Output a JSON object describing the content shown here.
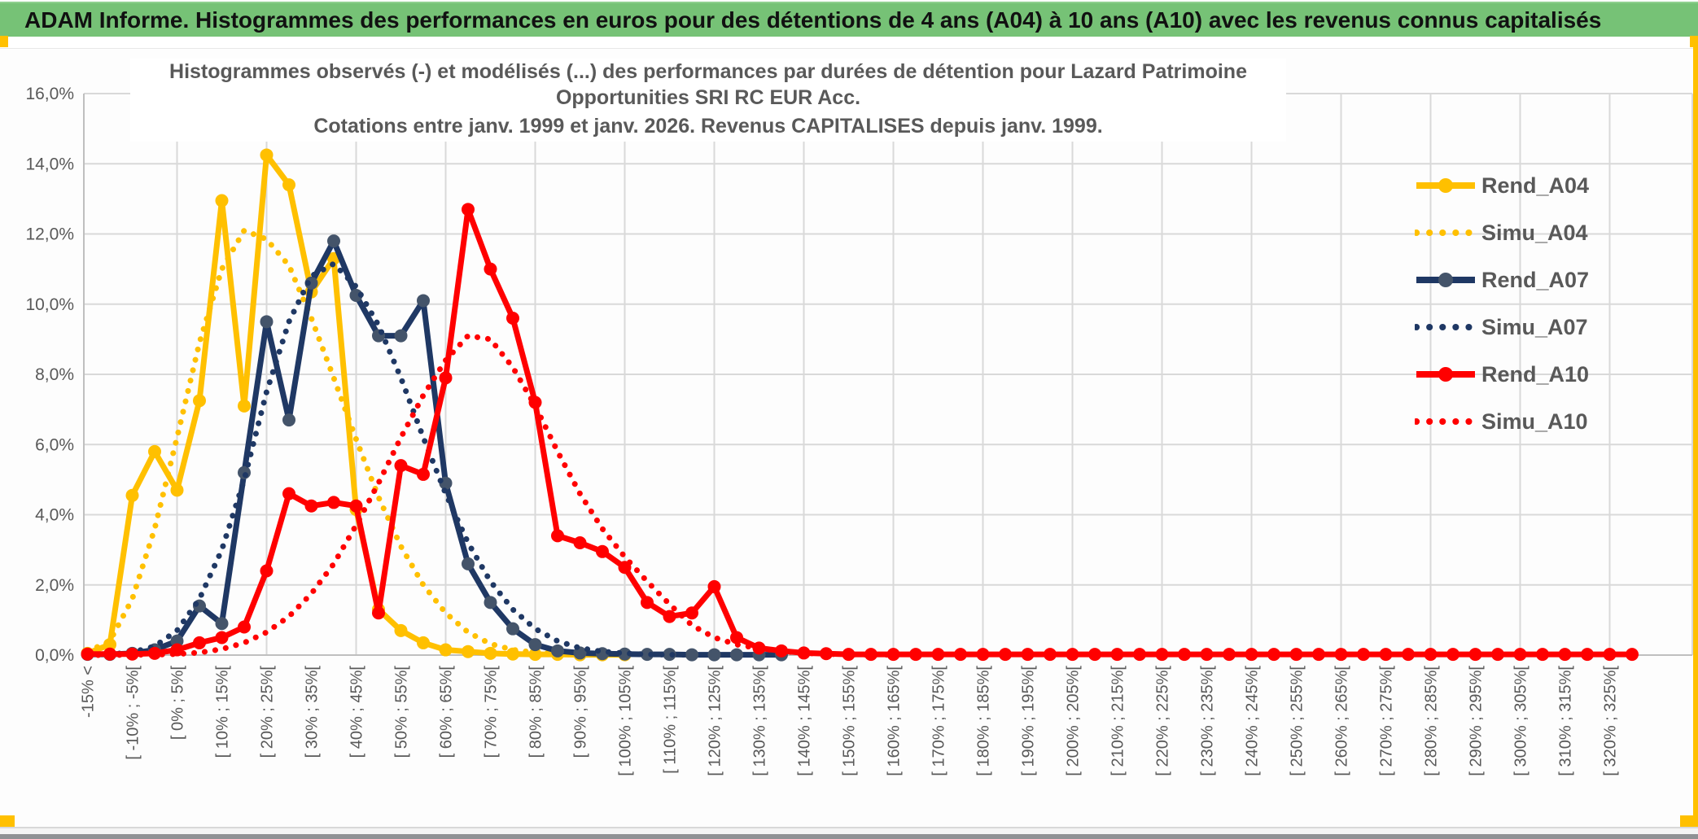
{
  "window": {
    "banner_title": "ADAM Informe. Histogrammes des performances en euros pour des détentions de 4 ans (A04) à 10 ans (A10) avec les revenus connus capitalisés",
    "banner_color": "#76C276",
    "accent_gold": "#FFC000",
    "bottom_bar_color": "#8F9194"
  },
  "chart_data": {
    "type": "line",
    "title_line1": "Histogrammes observés (-) et modélisés (...) des performances par durées de détention pour Lazard Patrimoine Opportunities SRI RC EUR Acc.",
    "title_line2": "Cotations entre janv. 1999 et janv. 2026. Revenus CAPITALISES depuis janv. 1999.",
    "grid": true,
    "legend_position": "right-inside",
    "ylim": [
      0,
      16
    ],
    "ytick_step_pct": 2,
    "y_tick_labels": [
      "0,0%",
      "2,0%",
      "4,0%",
      "6,0%",
      "8,0%",
      "10,0%",
      "12,0%",
      "14,0%",
      "16,0%"
    ],
    "n_bins": 70,
    "bin_width_pct": 5,
    "x_label_rotation": -90,
    "x_labels_every_other_bin": true,
    "x_tick_labels": [
      "-15% <",
      "[ -10% ; -5%[",
      "[ 0% ; 5%[",
      "[ 10% ; 15%[",
      "[ 20% ; 25%[",
      "[ 30% ; 35%[",
      "[ 40% ; 45%[",
      "[ 50% ; 55%[",
      "[ 60% ; 65%[",
      "[ 70% ; 75%[",
      "[ 80% ; 85%[",
      "[ 90% ; 95%[",
      "[ 100% ; 105%[",
      "[ 110% ; 115%[",
      "[ 120% ; 125%[",
      "[ 130% ; 135%[",
      "[ 140% ; 145%[",
      "[ 150% ; 155%[",
      "[ 160% ; 165%[",
      "[ 170% ; 175%[",
      "[ 180% ; 185%[",
      "[ 190% ; 195%[",
      "[ 200% ; 205%[",
      "[ 210% ; 215%[",
      "[ 220% ; 225%[",
      "[ 230% ; 235%[",
      "[ 240% ; 245%[",
      "[ 250% ; 255%[",
      "[ 260% ; 265%[",
      "[ 270% ; 275%[",
      "[ 280% ; 285%[",
      "[ 290% ; 295%[",
      "[ 300% ; 305%[",
      "[ 310% ; 315%[",
      "[ 320% ; 325%["
    ],
    "gridline_color": "#D9D9D9",
    "axis_line_color": "#BFBFBF",
    "axis_text_color": "#595959",
    "series": [
      {
        "name": "Rend_A04",
        "style": "solid",
        "color": "#FFC000",
        "marker": "#FFC000",
        "values": [
          0.05,
          0.3,
          4.55,
          5.8,
          4.7,
          7.25,
          12.95,
          7.1,
          14.25,
          13.4,
          10.35,
          11.3,
          4.15,
          1.3,
          0.7,
          0.35,
          0.15,
          0.1,
          0.05,
          0.03,
          0.02,
          0.02,
          0.01,
          0.01,
          0.01
        ]
      },
      {
        "name": "Simu_A04",
        "style": "dotted",
        "color": "#FFC000",
        "values": [
          0.1,
          0.4,
          1.6,
          3.6,
          6.2,
          8.9,
          11.0,
          12.1,
          11.85,
          11.1,
          9.6,
          7.9,
          6.15,
          4.5,
          3.1,
          2.0,
          1.2,
          0.65,
          0.32,
          0.15,
          0.07,
          0.03,
          0.01,
          0.01
        ]
      },
      {
        "name": "Rend_A07",
        "style": "solid",
        "color": "#1F3864",
        "marker": "#44546A",
        "values": [
          0.02,
          0.02,
          0.05,
          0.15,
          0.4,
          1.4,
          0.9,
          5.2,
          9.5,
          6.7,
          10.6,
          11.8,
          10.25,
          9.1,
          9.1,
          10.1,
          4.9,
          2.6,
          1.5,
          0.75,
          0.3,
          0.12,
          0.06,
          0.04,
          0.03,
          0.02,
          0.02,
          0.01,
          0.01,
          0.01,
          0.01,
          0.01
        ]
      },
      {
        "name": "Simu_A07",
        "style": "dotted",
        "color": "#1F3864",
        "values": [
          0,
          0.02,
          0.08,
          0.25,
          0.7,
          1.6,
          3.0,
          5.0,
          7.5,
          9.5,
          10.8,
          11.15,
          10.5,
          9.4,
          7.9,
          6.2,
          4.6,
          3.2,
          2.1,
          1.3,
          0.75,
          0.4,
          0.2,
          0.1,
          0.05,
          0.02,
          0.01,
          0.01
        ]
      },
      {
        "name": "Rend_A10",
        "style": "solid",
        "color": "#FF0000",
        "marker": "#FF0000",
        "values": [
          0.03,
          0.03,
          0.03,
          0.05,
          0.15,
          0.35,
          0.5,
          0.8,
          2.4,
          4.6,
          4.25,
          4.35,
          4.25,
          1.2,
          5.4,
          5.15,
          7.9,
          12.7,
          11.0,
          9.6,
          7.2,
          3.4,
          3.2,
          2.95,
          2.5,
          1.5,
          1.1,
          1.2,
          1.95,
          0.5,
          0.2,
          0.12,
          0.06,
          0.04,
          0.02,
          0.02,
          0.02,
          0.02,
          0.02,
          0.02,
          0.02,
          0.02,
          0.02,
          0.02,
          0.02,
          0.02,
          0.02,
          0.02,
          0.02,
          0.02,
          0.02,
          0.02,
          0.02,
          0.02,
          0.02,
          0.02,
          0.02,
          0.02,
          0.02,
          0.02,
          0.02,
          0.02,
          0.02,
          0.02,
          0.02,
          0.02,
          0.02,
          0.02,
          0.02,
          0.02
        ]
      },
      {
        "name": "Simu_A10",
        "style": "dotted",
        "color": "#FF0000",
        "values": [
          0,
          0,
          0.01,
          0.01,
          0.03,
          0.07,
          0.17,
          0.35,
          0.65,
          1.1,
          1.75,
          2.6,
          3.7,
          4.9,
          6.2,
          7.4,
          8.4,
          9.1,
          9.0,
          8.2,
          7.1,
          5.8,
          4.6,
          3.6,
          2.8,
          2.1,
          1.45,
          0.85,
          0.5,
          0.3,
          0.19,
          0.11,
          0.06,
          0.03,
          0.02,
          0.01,
          0.01
        ]
      }
    ]
  }
}
